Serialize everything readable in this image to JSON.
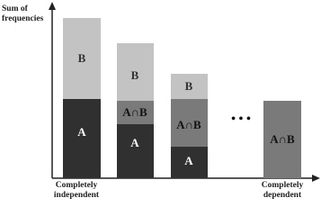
{
  "y_axis_label": [
    "Sum of",
    "frequencies"
  ],
  "bars": [
    {
      "segments": [
        {
          "label": "B"
        },
        {
          "label": "A"
        }
      ]
    },
    {
      "segments": [
        {
          "label": "B"
        },
        {
          "label": "A∩B"
        },
        {
          "label": "A"
        }
      ]
    },
    {
      "segments": [
        {
          "label": "B"
        },
        {
          "label": "A∩B"
        },
        {
          "label": "A"
        }
      ]
    },
    {
      "segments": [
        {
          "label": "A∩B"
        }
      ]
    }
  ],
  "ellipsis": "• • •",
  "x_labels": {
    "left": [
      "Completely",
      "independent"
    ],
    "right": [
      "Completely",
      "dependent"
    ]
  }
}
